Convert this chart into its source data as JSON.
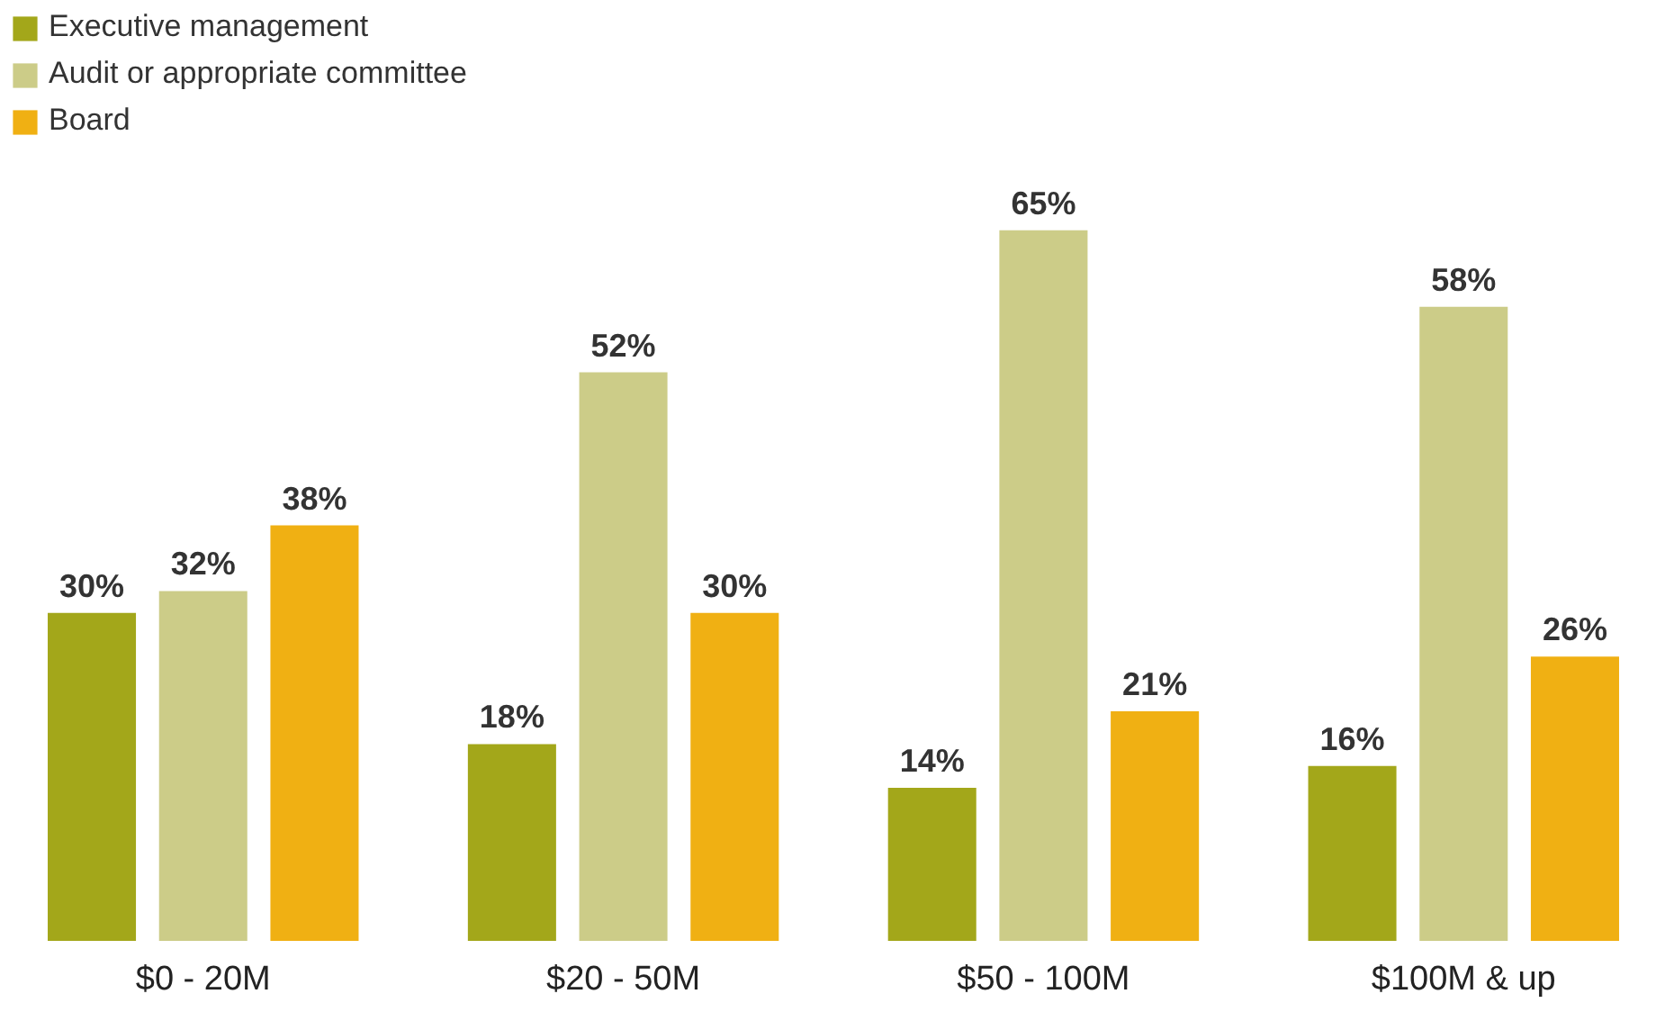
{
  "chart_data": {
    "type": "bar",
    "categories": [
      "$0 - 20M",
      "$20 - 50M",
      "$50 - 100M",
      "$100M & up"
    ],
    "series": [
      {
        "name": "Executive management",
        "color": "#a3a71a",
        "values": [
          30,
          18,
          14,
          16
        ],
        "value_labels": [
          "30%",
          "18%",
          "14%",
          "16%"
        ]
      },
      {
        "name": "Audit or appropriate committee",
        "color": "#cccc88",
        "values": [
          32,
          52,
          65,
          58
        ],
        "value_labels": [
          "32%",
          "52%",
          "65%",
          "58%"
        ]
      },
      {
        "name": "Board",
        "color": "#f0b013",
        "values": [
          38,
          30,
          21,
          26
        ],
        "value_labels": [
          "38%",
          "30%",
          "21%",
          "26%"
        ]
      }
    ],
    "legend": "top left"
  }
}
